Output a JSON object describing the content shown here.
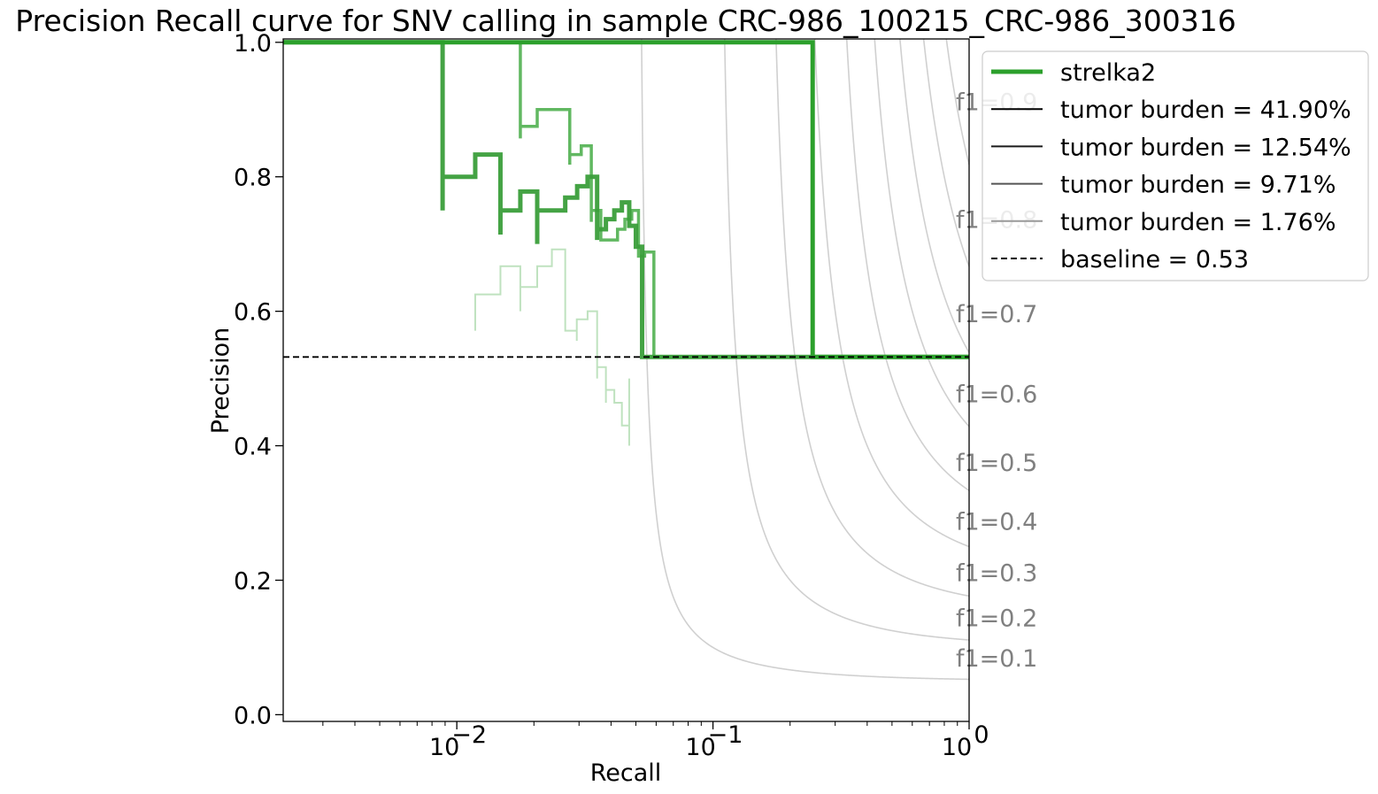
{
  "chart_data": {
    "type": "line",
    "title": "Precision Recall curve for SNV calling in sample CRC-986_100215_CRC-986_300316",
    "xlabel": "Recall",
    "ylabel": "Precision",
    "xscale": "log",
    "xlim": [
      0.0021,
      1.0
    ],
    "ylim": [
      -0.01,
      1.005
    ],
    "xticks": [
      {
        "value": 0.01,
        "label": "10",
        "exp": "−2"
      },
      {
        "value": 0.1,
        "label": "10",
        "exp": "−1"
      },
      {
        "value": 1.0,
        "label": "10",
        "exp": "0"
      }
    ],
    "yticks": [
      {
        "value": 0.0,
        "label": "0.0"
      },
      {
        "value": 0.2,
        "label": "0.2"
      },
      {
        "value": 0.4,
        "label": "0.4"
      },
      {
        "value": 0.6,
        "label": "0.6"
      },
      {
        "value": 0.8,
        "label": "0.8"
      },
      {
        "value": 1.0,
        "label": "1.0"
      }
    ],
    "grid": false,
    "legend_position": "outside-top-right",
    "legend": [
      {
        "label": "strelka2",
        "color": "#2ca02c",
        "width": 5,
        "dash": "solid"
      },
      {
        "label": "tumor burden = 41.90%",
        "color": "#000000",
        "width": 2,
        "dash": "solid"
      },
      {
        "label": "tumor burden = 12.54%",
        "color": "#1a1a1a",
        "width": 2,
        "dash": "solid"
      },
      {
        "label": "tumor burden = 9.71%",
        "color": "#555555",
        "width": 2,
        "dash": "solid"
      },
      {
        "label": "tumor burden = 1.76%",
        "color": "#999999",
        "width": 2,
        "dash": "solid"
      },
      {
        "label": "baseline = 0.53",
        "color": "#000000",
        "width": 2,
        "dash": "dashed"
      }
    ],
    "baseline": 0.532,
    "f1_isolines": [
      {
        "f1": 0.1,
        "label": "f1=0.1",
        "label_precision": 0.085
      },
      {
        "f1": 0.2,
        "label": "f1=0.2",
        "label_precision": 0.145
      },
      {
        "f1": 0.3,
        "label": "f1=0.3",
        "label_precision": 0.212
      },
      {
        "f1": 0.4,
        "label": "f1=0.4",
        "label_precision": 0.288
      },
      {
        "f1": 0.5,
        "label": "f1=0.5",
        "label_precision": 0.376
      },
      {
        "f1": 0.6,
        "label": "f1=0.6",
        "label_precision": 0.478
      },
      {
        "f1": 0.7,
        "label": "f1=0.7",
        "label_precision": 0.597
      },
      {
        "f1": 0.8,
        "label": "f1=0.8",
        "label_precision": 0.737
      },
      {
        "f1": 0.9,
        "label": "f1=0.9",
        "label_precision": 0.912
      }
    ],
    "series": [
      {
        "name": "tumor burden = 41.90%",
        "color": "#2ca02c",
        "opacity": 1.0,
        "width": 5,
        "points": [
          [
            0.0021,
            1.0
          ],
          [
            0.245,
            1.0
          ],
          [
            0.245,
            0.532
          ],
          [
            1.0,
            0.532
          ]
        ]
      },
      {
        "name": "tumor burden = 12.54%",
        "color": "#3a9e3a",
        "opacity": 0.95,
        "width": 5,
        "points": [
          [
            0.0021,
            1.0
          ],
          [
            0.0088,
            1.0
          ],
          [
            0.0088,
            0.75
          ],
          [
            0.0088,
            0.8
          ],
          [
            0.0118,
            0.8
          ],
          [
            0.0118,
            0.833
          ],
          [
            0.0148,
            0.833
          ],
          [
            0.0148,
            0.714
          ],
          [
            0.0148,
            0.75
          ],
          [
            0.0177,
            0.75
          ],
          [
            0.0177,
            0.778
          ],
          [
            0.0206,
            0.778
          ],
          [
            0.0206,
            0.7
          ],
          [
            0.0206,
            0.75
          ],
          [
            0.0265,
            0.75
          ],
          [
            0.0265,
            0.769
          ],
          [
            0.0295,
            0.769
          ],
          [
            0.0295,
            0.786
          ],
          [
            0.0324,
            0.786
          ],
          [
            0.0324,
            0.8
          ],
          [
            0.0353,
            0.8
          ],
          [
            0.0353,
            0.706
          ],
          [
            0.0353,
            0.722
          ],
          [
            0.0382,
            0.722
          ],
          [
            0.0382,
            0.737
          ],
          [
            0.0412,
            0.737
          ],
          [
            0.0412,
            0.75
          ],
          [
            0.0441,
            0.75
          ],
          [
            0.0441,
            0.762
          ],
          [
            0.0471,
            0.762
          ],
          [
            0.0471,
            0.727
          ],
          [
            0.05,
            0.727
          ],
          [
            0.05,
            0.696
          ],
          [
            0.0529,
            0.696
          ],
          [
            0.0529,
            0.532
          ],
          [
            1.0,
            0.532
          ]
        ]
      },
      {
        "name": "tumor burden = 9.71%",
        "color": "#2ca02c",
        "opacity": 0.75,
        "width": 3.5,
        "points": [
          [
            0.0021,
            1.0
          ],
          [
            0.0177,
            1.0
          ],
          [
            0.0177,
            0.857
          ],
          [
            0.0177,
            0.875
          ],
          [
            0.0206,
            0.875
          ],
          [
            0.0206,
            0.9
          ],
          [
            0.0276,
            0.9
          ],
          [
            0.0276,
            0.818
          ],
          [
            0.0276,
            0.833
          ],
          [
            0.0306,
            0.833
          ],
          [
            0.0306,
            0.846
          ],
          [
            0.0335,
            0.846
          ],
          [
            0.0335,
            0.733
          ],
          [
            0.0335,
            0.75
          ],
          [
            0.0365,
            0.75
          ],
          [
            0.0365,
            0.706
          ],
          [
            0.0424,
            0.706
          ],
          [
            0.0424,
            0.722
          ],
          [
            0.0453,
            0.722
          ],
          [
            0.0453,
            0.737
          ],
          [
            0.0482,
            0.737
          ],
          [
            0.0482,
            0.75
          ],
          [
            0.0512,
            0.75
          ],
          [
            0.0512,
            0.682
          ],
          [
            0.0541,
            0.682
          ],
          [
            0.0541,
            0.688
          ],
          [
            0.0588,
            0.688
          ],
          [
            0.0588,
            0.532
          ],
          [
            1.0,
            0.532
          ]
        ]
      },
      {
        "name": "tumor burden = 1.76%",
        "color": "#2ca02c",
        "opacity": 0.3,
        "width": 2,
        "points": [
          [
            0.0118,
            0.571
          ],
          [
            0.0118,
            0.625
          ],
          [
            0.0148,
            0.625
          ],
          [
            0.0148,
            0.667
          ],
          [
            0.0177,
            0.667
          ],
          [
            0.0177,
            0.6
          ],
          [
            0.0177,
            0.636
          ],
          [
            0.0206,
            0.636
          ],
          [
            0.0206,
            0.667
          ],
          [
            0.0235,
            0.667
          ],
          [
            0.0235,
            0.692
          ],
          [
            0.0265,
            0.692
          ],
          [
            0.0265,
            0.571
          ],
          [
            0.0294,
            0.571
          ],
          [
            0.0294,
            0.556
          ],
          [
            0.0294,
            0.588
          ],
          [
            0.0324,
            0.588
          ],
          [
            0.0324,
            0.6
          ],
          [
            0.0353,
            0.6
          ],
          [
            0.0353,
            0.5
          ],
          [
            0.0353,
            0.517
          ],
          [
            0.0382,
            0.517
          ],
          [
            0.0382,
            0.464
          ],
          [
            0.0382,
            0.483
          ],
          [
            0.0412,
            0.483
          ],
          [
            0.0412,
            0.464
          ],
          [
            0.0441,
            0.464
          ],
          [
            0.0441,
            0.43
          ],
          [
            0.0471,
            0.43
          ],
          [
            0.0471,
            0.4
          ],
          [
            0.0471,
            0.5
          ]
        ]
      }
    ]
  }
}
